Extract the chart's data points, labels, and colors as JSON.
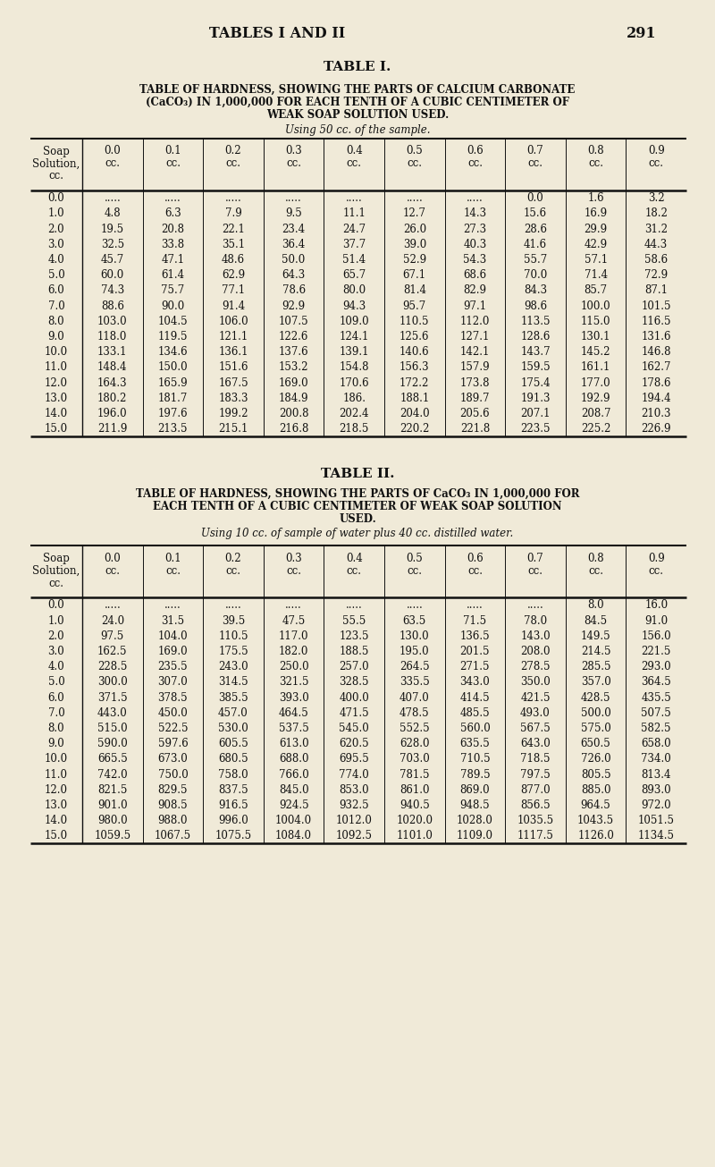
{
  "page_header": "TABLES I AND II",
  "page_number": "291",
  "bg_color": "#f0ead8",
  "text_color": "#111111",
  "table1": {
    "title": "TABLE I.",
    "sub1": "TABLE OF HARDNESS, SHOWING THE PARTS OF CALCIUM CARBONATE",
    "sub2": "(CaCO₃) IN 1,000,000 FOR EACH TENTH OF A CUBIC CENTIMETER OF",
    "sub3": "WEAK SOAP SOLUTION USED.",
    "using": "Using 50 cc. of the sample.",
    "rows": [
      [
        "0.0",
        ".....",
        ".....",
        ".....",
        ".....",
        ".....",
        ".....",
        ".....",
        "0.0",
        "1.6",
        "3.2"
      ],
      [
        "1.0",
        "4.8",
        "6.3",
        "7.9",
        "9.5",
        "11.1",
        "12.7",
        "14.3",
        "15.6",
        "16.9",
        "18.2"
      ],
      [
        "2.0",
        "19.5",
        "20.8",
        "22.1",
        "23.4",
        "24.7",
        "26.0",
        "27.3",
        "28.6",
        "29.9",
        "31.2"
      ],
      [
        "3.0",
        "32.5",
        "33.8",
        "35.1",
        "36.4",
        "37.7",
        "39.0",
        "40.3",
        "41.6",
        "42.9",
        "44.3"
      ],
      [
        "4.0",
        "45.7",
        "47.1",
        "48.6",
        "50.0",
        "51.4",
        "52.9",
        "54.3",
        "55.7",
        "57.1",
        "58.6"
      ],
      [
        "5.0",
        "60.0",
        "61.4",
        "62.9",
        "64.3",
        "65.7",
        "67.1",
        "68.6",
        "70.0",
        "71.4",
        "72.9"
      ],
      [
        "6.0",
        "74.3",
        "75.7",
        "77.1",
        "78.6",
        "80.0",
        "81.4",
        "82.9",
        "84.3",
        "85.7",
        "87.1"
      ],
      [
        "7.0",
        "88.6",
        "90.0",
        "91.4",
        "92.9",
        "94.3",
        "95.7",
        "97.1",
        "98.6",
        "100.0",
        "101.5"
      ],
      [
        "8.0",
        "103.0",
        "104.5",
        "106.0",
        "107.5",
        "109.0",
        "110.5",
        "112.0",
        "113.5",
        "115.0",
        "116.5"
      ],
      [
        "9.0",
        "118.0",
        "119.5",
        "121.1",
        "122.6",
        "124.1",
        "125.6",
        "127.1",
        "128.6",
        "130.1",
        "131.6"
      ],
      [
        "10.0",
        "133.1",
        "134.6",
        "136.1",
        "137.6",
        "139.1",
        "140.6",
        "142.1",
        "143.7",
        "145.2",
        "146.8"
      ],
      [
        "11.0",
        "148.4",
        "150.0",
        "151.6",
        "153.2",
        "154.8",
        "156.3",
        "157.9",
        "159.5",
        "161.1",
        "162.7"
      ],
      [
        "12.0",
        "164.3",
        "165.9",
        "167.5",
        "169.0",
        "170.6",
        "172.2",
        "173.8",
        "175.4",
        "177.0",
        "178.6"
      ],
      [
        "13.0",
        "180.2",
        "181.7",
        "183.3",
        "184.9",
        "186.",
        "188.1",
        "189.7",
        "191.3",
        "192.9",
        "194.4"
      ],
      [
        "14.0",
        "196.0",
        "197.6",
        "199.2",
        "200.8",
        "202.4",
        "204.0",
        "205.6",
        "207.1",
        "208.7",
        "210.3"
      ],
      [
        "15.0",
        "211.9",
        "213.5",
        "215.1",
        "216.8",
        "218.5",
        "220.2",
        "221.8",
        "223.5",
        "225.2",
        "226.9"
      ]
    ]
  },
  "table2": {
    "title": "TABLE II.",
    "sub1": "TABLE OF HARDNESS, SHOWING THE PARTS OF CaCO₃ IN 1,000,000 FOR",
    "sub2": "EACH TENTH OF A CUBIC CENTIMETER OF WEAK SOAP SOLUTION",
    "sub3": "USED.",
    "using": "Using 10 cc. of sample of water plus 40 cc. distilled water.",
    "rows": [
      [
        "0.0",
        ".....",
        ".....",
        ".....",
        ".....",
        ".....",
        ".....",
        ".....",
        ".....",
        "8.0",
        "16.0"
      ],
      [
        "1.0",
        "24.0",
        "31.5",
        "39.5",
        "47.5",
        "55.5",
        "63.5",
        "71.5",
        "78.0",
        "84.5",
        "91.0"
      ],
      [
        "2.0",
        "97.5",
        "104.0",
        "110.5",
        "117.0",
        "123.5",
        "130.0",
        "136.5",
        "143.0",
        "149.5",
        "156.0"
      ],
      [
        "3.0",
        "162.5",
        "169.0",
        "175.5",
        "182.0",
        "188.5",
        "195.0",
        "201.5",
        "208.0",
        "214.5",
        "221.5"
      ],
      [
        "4.0",
        "228.5",
        "235.5",
        "243.0",
        "250.0",
        "257.0",
        "264.5",
        "271.5",
        "278.5",
        "285.5",
        "293.0"
      ],
      [
        "5.0",
        "300.0",
        "307.0",
        "314.5",
        "321.5",
        "328.5",
        "335.5",
        "343.0",
        "350.0",
        "357.0",
        "364.5"
      ],
      [
        "6.0",
        "371.5",
        "378.5",
        "385.5",
        "393.0",
        "400.0",
        "407.0",
        "414.5",
        "421.5",
        "428.5",
        "435.5"
      ],
      [
        "7.0",
        "443.0",
        "450.0",
        "457.0",
        "464.5",
        "471.5",
        "478.5",
        "485.5",
        "493.0",
        "500.0",
        "507.5"
      ],
      [
        "8.0",
        "515.0",
        "522.5",
        "530.0",
        "537.5",
        "545.0",
        "552.5",
        "560.0",
        "567.5",
        "575.0",
        "582.5"
      ],
      [
        "9.0",
        "590.0",
        "597.6",
        "605.5",
        "613.0",
        "620.5",
        "628.0",
        "635.5",
        "643.0",
        "650.5",
        "658.0"
      ],
      [
        "10.0",
        "665.5",
        "673.0",
        "680.5",
        "688.0",
        "695.5",
        "703.0",
        "710.5",
        "718.5",
        "726.0",
        "734.0"
      ],
      [
        "11.0",
        "742.0",
        "750.0",
        "758.0",
        "766.0",
        "774.0",
        "781.5",
        "789.5",
        "797.5",
        "805.5",
        "813.4"
      ],
      [
        "12.0",
        "821.5",
        "829.5",
        "837.5",
        "845.0",
        "853.0",
        "861.0",
        "869.0",
        "877.0",
        "885.0",
        "893.0"
      ],
      [
        "13.0",
        "901.0",
        "908.5",
        "916.5",
        "924.5",
        "932.5",
        "940.5",
        "948.5",
        "856.5",
        "964.5",
        "972.0"
      ],
      [
        "14.0",
        "980.0",
        "988.0",
        "996.0",
        "1004.0",
        "1012.0",
        "1020.0",
        "1028.0",
        "1035.5",
        "1043.5",
        "1051.5"
      ],
      [
        "15.0",
        "1059.5",
        "1067.5",
        "1075.5",
        "1084.0",
        "1092.5",
        "1101.0",
        "1109.0",
        "1117.5",
        "1126.0",
        "1134.5"
      ]
    ]
  }
}
